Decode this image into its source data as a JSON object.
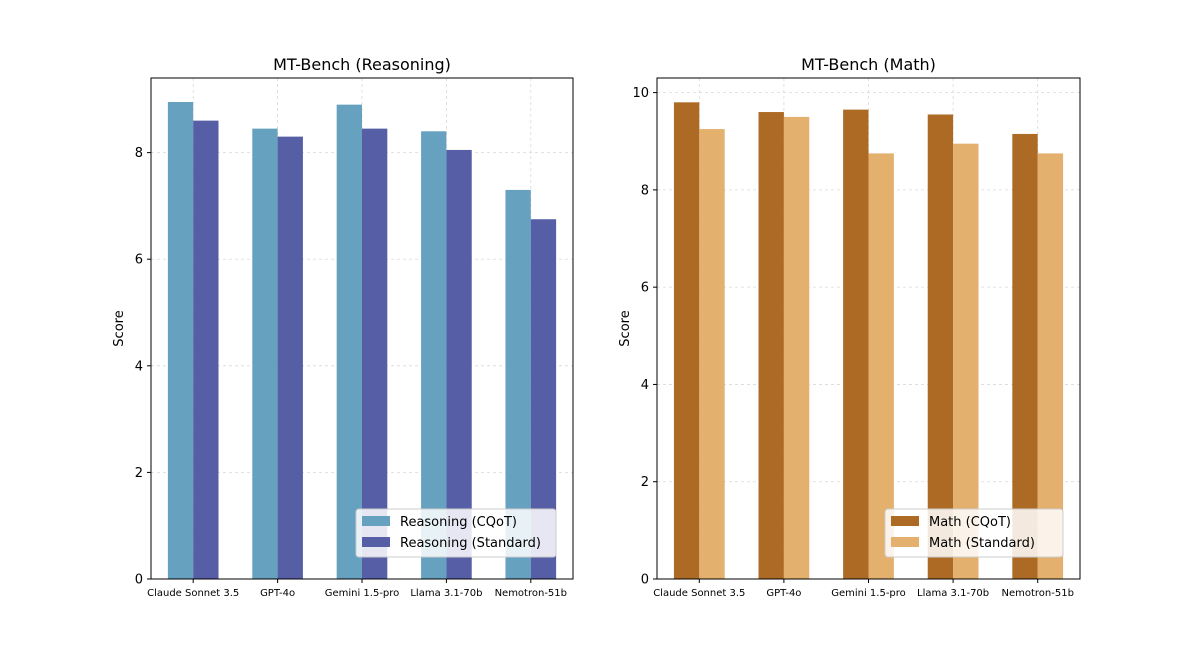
{
  "chart_data": [
    {
      "type": "bar",
      "title": "MT-Bench (Reasoning)",
      "xlabel": "",
      "ylabel": "Score",
      "ylim": [
        0,
        9.4
      ],
      "yticks": [
        0,
        2,
        4,
        6,
        8
      ],
      "grid": true,
      "legend_position": "bottom-right",
      "categories": [
        "Claude Sonnet 3.5",
        "GPT-4o",
        "Gemini 1.5-pro",
        "Llama 3.1-70b",
        "Nemotron-51b"
      ],
      "series": [
        {
          "name": "Reasoning (CQoT)",
          "color": "#66A1C0",
          "values": [
            8.95,
            8.45,
            8.9,
            8.4,
            7.3
          ]
        },
        {
          "name": "Reasoning (Standard)",
          "color": "#565EA5",
          "values": [
            8.6,
            8.3,
            8.45,
            8.05,
            6.75
          ]
        }
      ]
    },
    {
      "type": "bar",
      "title": "MT-Bench (Math)",
      "xlabel": "",
      "ylabel": "Score",
      "ylim": [
        0,
        10.3
      ],
      "yticks": [
        0,
        2,
        4,
        6,
        8,
        10
      ],
      "grid": true,
      "legend_position": "bottom-right",
      "categories": [
        "Claude Sonnet 3.5",
        "GPT-4o",
        "Gemini 1.5-pro",
        "Llama 3.1-70b",
        "Nemotron-51b"
      ],
      "series": [
        {
          "name": "Math (CQoT)",
          "color": "#AD6A24",
          "values": [
            9.8,
            9.6,
            9.65,
            9.55,
            9.15
          ]
        },
        {
          "name": "Math (Standard)",
          "color": "#E3B06E",
          "values": [
            9.25,
            9.5,
            8.75,
            8.95,
            8.75
          ]
        }
      ]
    }
  ]
}
